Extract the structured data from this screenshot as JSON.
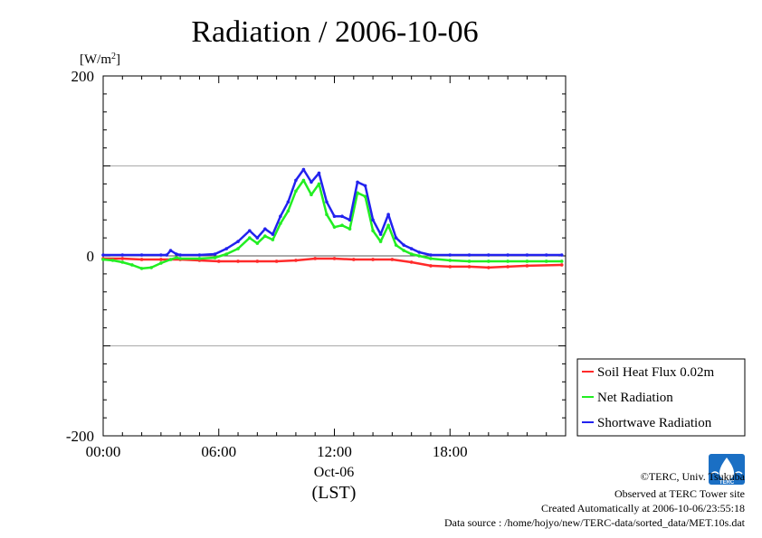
{
  "chart_data": {
    "type": "line",
    "title": "Radiation / 2006-10-06",
    "ylabel_unit": "[W/m",
    "ylabel_sup": "2",
    "ylabel_close": "]",
    "xlabel_date": "Oct-06",
    "xlabel_tz": "(LST)",
    "xlim": [
      0,
      24
    ],
    "ylim": [
      -200,
      200
    ],
    "xticks": [
      {
        "value": 0,
        "label": "00:00"
      },
      {
        "value": 6,
        "label": "06:00"
      },
      {
        "value": 12,
        "label": "12:00"
      },
      {
        "value": 18,
        "label": "18:00"
      }
    ],
    "yticks": [
      {
        "value": 200,
        "label": "200"
      },
      {
        "value": 0,
        "label": "0"
      },
      {
        "value": -200,
        "label": "-200"
      }
    ],
    "gridlines_y": [
      100,
      0,
      -100
    ],
    "legend_position": "bottom-right",
    "series": [
      {
        "name": "Soil Heat Flux 0.02m",
        "color": "#ff2a2a",
        "x": [
          0,
          1,
          2,
          3,
          4,
          5,
          6,
          7,
          8,
          9,
          10,
          11,
          12,
          13,
          14,
          15,
          16,
          17,
          18,
          19,
          20,
          21,
          22,
          23.8
        ],
        "y": [
          -3,
          -3,
          -4,
          -4,
          -4,
          -5,
          -6,
          -6,
          -6,
          -6,
          -5,
          -3,
          -3,
          -4,
          -4,
          -4,
          -7,
          -11,
          -12,
          -12,
          -13,
          -12,
          -11,
          -10
        ]
      },
      {
        "name": "Net Radiation",
        "color": "#22ee22",
        "x": [
          0,
          0.5,
          1,
          1.5,
          2,
          2.5,
          3,
          3.5,
          3.8,
          4,
          5,
          5.8,
          6.4,
          7,
          7.6,
          8,
          8.4,
          8.8,
          9.2,
          9.6,
          10,
          10.4,
          10.8,
          11.2,
          11.6,
          12,
          12.4,
          12.8,
          13.2,
          13.6,
          14,
          14.4,
          14.8,
          15.2,
          15.6,
          16,
          16.4,
          17,
          18,
          19,
          20,
          21,
          22,
          23,
          23.8
        ],
        "y": [
          -4,
          -5,
          -7,
          -10,
          -14,
          -13,
          -8,
          -4,
          -2,
          -3,
          -3,
          -2,
          2,
          8,
          20,
          14,
          22,
          18,
          36,
          50,
          72,
          84,
          68,
          80,
          46,
          32,
          34,
          30,
          70,
          66,
          28,
          16,
          34,
          12,
          6,
          2,
          0,
          -3,
          -5,
          -6,
          -6,
          -6,
          -6,
          -6,
          -6
        ]
      },
      {
        "name": "Shortwave Radiation",
        "color": "#2222ee",
        "x": [
          0,
          1,
          2,
          3,
          3.3,
          3.5,
          3.8,
          4,
          5,
          5.8,
          6.4,
          7,
          7.6,
          8,
          8.4,
          8.8,
          9.2,
          9.6,
          10,
          10.4,
          10.8,
          11.2,
          11.6,
          12,
          12.4,
          12.8,
          13.2,
          13.6,
          14,
          14.4,
          14.8,
          15.2,
          15.6,
          16,
          16.4,
          17,
          18,
          19,
          20,
          21,
          22,
          23,
          23.8
        ],
        "y": [
          1,
          1,
          1,
          1,
          1,
          6,
          2,
          1,
          1,
          2,
          8,
          16,
          28,
          20,
          30,
          24,
          44,
          60,
          84,
          96,
          82,
          92,
          60,
          44,
          44,
          40,
          82,
          78,
          40,
          24,
          46,
          20,
          12,
          8,
          4,
          1,
          1,
          1,
          1,
          1,
          1,
          1,
          1
        ]
      }
    ]
  },
  "footer": {
    "copyright": "©TERC, Univ. Tsukuba",
    "observed": "Observed at TERC Tower site",
    "created": "Created Automatically at 2006-10-06/23:55:18",
    "source": "Data source : /home/hojyo/new/TERC-data/sorted_data/MET.10s.dat"
  },
  "logo": {
    "text": "TERC",
    "color": "#1a6fc4"
  }
}
